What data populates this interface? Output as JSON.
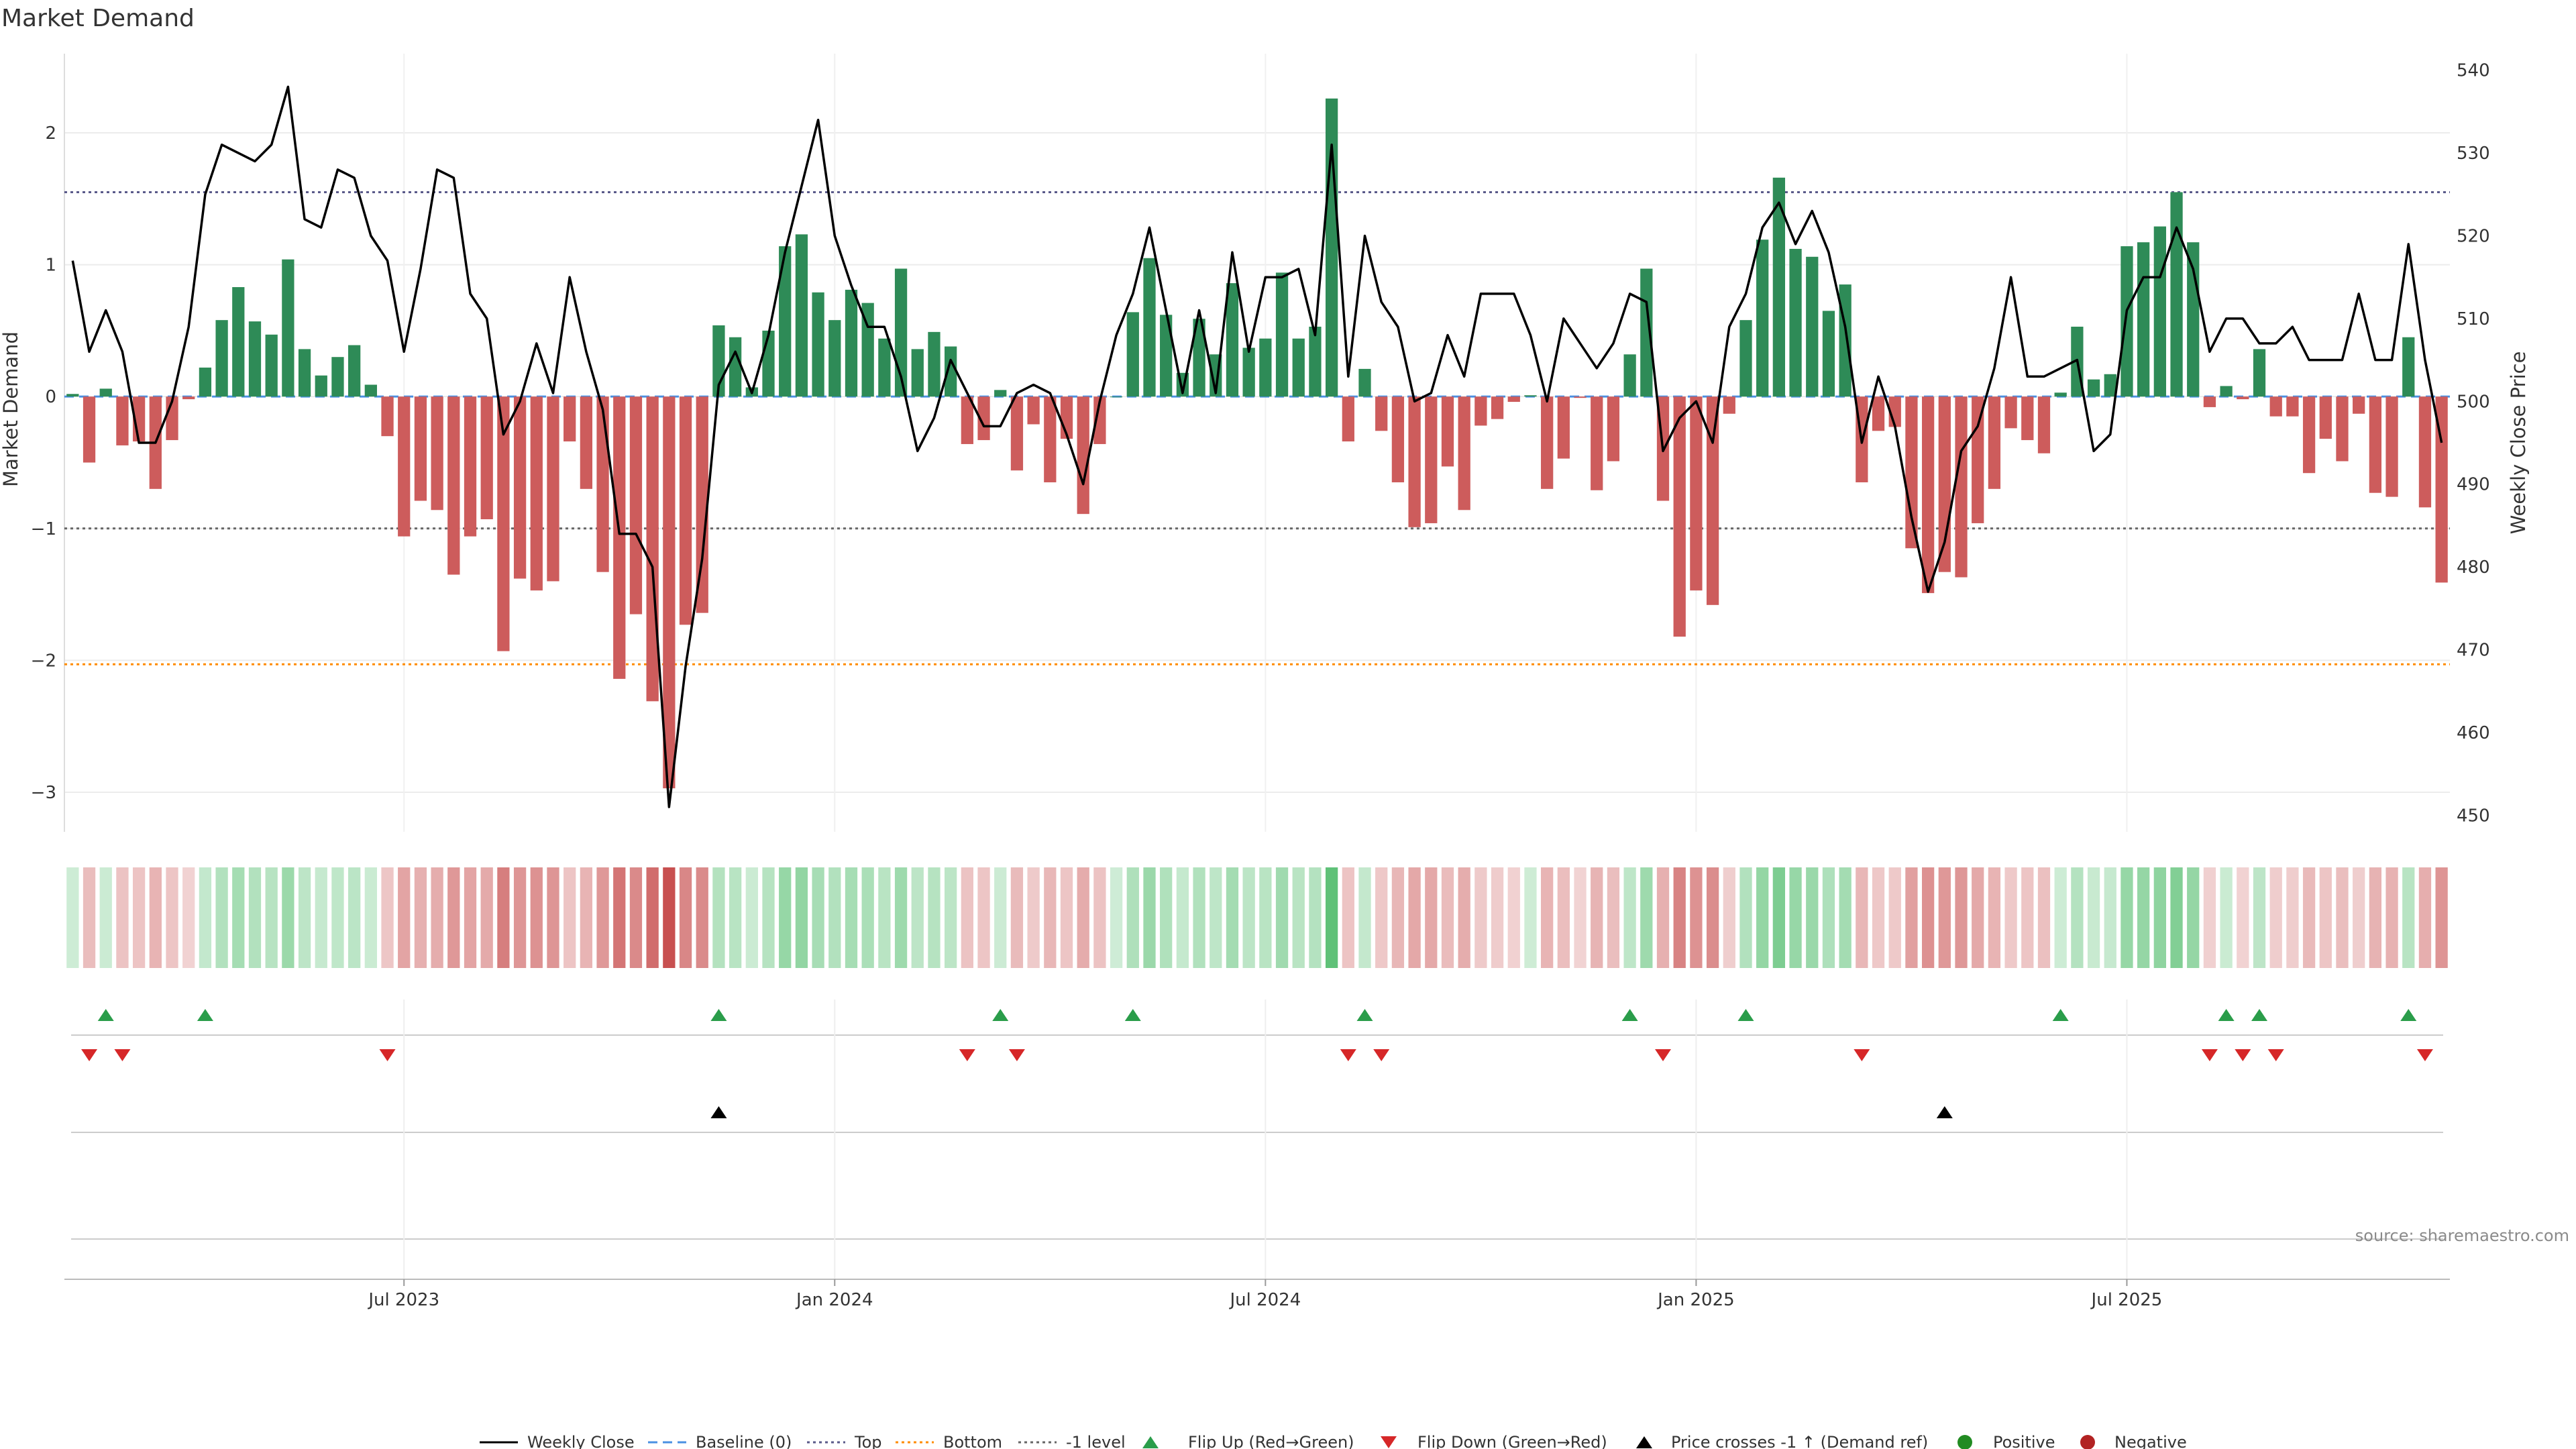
{
  "chart_data": {
    "type": "bar",
    "title": "Market Demand",
    "ylabel_left": "Market Demand",
    "ylabel_right": "Weekly Close Price",
    "ylim_left": [
      -3.3,
      2.6
    ],
    "ylim_right": [
      448,
      542
    ],
    "left_ticks": [
      2,
      1,
      0,
      -1,
      -2,
      -3
    ],
    "left_tick_labels": [
      "2",
      "1",
      "0",
      "−1",
      "−2",
      "−3"
    ],
    "right_ticks": [
      540,
      530,
      520,
      510,
      500,
      490,
      480,
      470,
      460,
      450
    ],
    "right_tick_labels": [
      "540",
      "530",
      "520",
      "510",
      "500",
      "490",
      "480",
      "470",
      "460",
      "450"
    ],
    "reference_lines": {
      "top": 1.55,
      "bottom": -2.03,
      "minus_one": -1.0,
      "baseline": 0
    },
    "x_ticks": [
      {
        "week": 20.5,
        "label": "Jul 2023"
      },
      {
        "week": 46.5,
        "label": "Jan 2024"
      },
      {
        "week": 72.5,
        "label": "Jul 2024"
      },
      {
        "week": 98.5,
        "label": "Jan 2025"
      },
      {
        "week": 124.5,
        "label": "Jul 2025"
      }
    ],
    "series": [
      {
        "name": "Market Demand",
        "values": [
          0.02,
          -0.5,
          0.06,
          -0.37,
          -0.34,
          -0.7,
          -0.33,
          -0.02,
          0.22,
          0.58,
          0.83,
          0.57,
          0.47,
          1.04,
          0.36,
          0.16,
          0.3,
          0.39,
          0.09,
          -0.3,
          -1.06,
          -0.79,
          -0.86,
          -1.35,
          -1.06,
          -0.93,
          -1.93,
          -1.38,
          -1.47,
          -1.4,
          -0.34,
          -0.7,
          -1.33,
          -2.14,
          -1.65,
          -2.31,
          -2.97,
          -1.73,
          -1.64,
          0.54,
          0.45,
          0.07,
          0.5,
          1.14,
          1.23,
          0.79,
          0.58,
          0.81,
          0.71,
          0.44,
          0.97,
          0.36,
          0.49,
          0.38,
          -0.36,
          -0.33,
          0.05,
          -0.56,
          -0.21,
          -0.65,
          -0.32,
          -0.89,
          -0.36,
          0.0,
          0.64,
          1.05,
          0.62,
          0.18,
          0.59,
          0.32,
          0.86,
          0.37,
          0.44,
          0.94,
          0.44,
          0.53,
          2.26,
          -0.34,
          0.21,
          -0.26,
          -0.65,
          -0.99,
          -0.96,
          -0.53,
          -0.86,
          -0.22,
          -0.17,
          -0.04,
          0.01,
          -0.7,
          -0.47,
          -0.01,
          -0.71,
          -0.49,
          0.32,
          0.97,
          -0.79,
          -1.82,
          -1.47,
          -1.58,
          -0.13,
          0.58,
          1.19,
          1.66,
          1.12,
          1.06,
          0.65,
          0.85,
          -0.65,
          -0.26,
          -0.23,
          -1.15,
          -1.49,
          -1.33,
          -1.37,
          -0.96,
          -0.7,
          -0.24,
          -0.33,
          -0.43,
          0.03,
          0.53,
          0.13,
          0.17,
          1.14,
          1.17,
          1.29,
          1.55,
          1.17,
          -0.08,
          0.08,
          -0.02,
          0.36,
          -0.15,
          -0.15,
          -0.58,
          -0.32,
          -0.49,
          -0.13,
          -0.73,
          -0.76,
          0.45,
          -0.84,
          -1.41
        ]
      },
      {
        "name": "Weekly Close",
        "values": [
          517,
          506,
          511,
          506,
          495,
          495,
          500,
          509,
          525,
          531,
          530,
          529,
          531,
          538,
          522,
          521,
          528,
          527,
          520,
          517,
          506,
          516,
          528,
          527,
          513,
          510,
          496,
          500,
          507,
          501,
          515,
          506,
          499,
          484,
          484,
          480,
          451,
          468,
          481,
          502,
          506,
          501,
          508,
          518,
          526,
          534,
          520,
          514,
          509,
          509,
          503,
          494,
          498,
          505,
          501,
          497,
          497,
          501,
          502,
          501,
          496,
          490,
          500,
          508,
          513,
          521,
          511,
          501,
          511,
          501,
          518,
          506,
          515,
          515,
          516,
          508,
          531,
          503,
          520,
          512,
          509,
          500,
          501,
          508,
          503,
          513,
          513,
          513,
          508,
          500,
          510,
          507,
          504,
          507,
          513,
          512,
          494,
          498,
          500,
          495,
          509,
          513,
          521,
          524,
          519,
          523,
          518,
          509,
          495,
          503,
          497,
          486,
          477,
          483,
          494,
          497,
          504,
          515,
          503,
          503,
          504,
          505,
          494,
          496,
          511,
          515,
          515,
          521,
          516,
          506,
          510,
          510,
          507,
          507,
          509,
          505,
          505,
          505,
          513,
          505,
          505,
          519,
          505,
          495
        ]
      }
    ],
    "heat_strip": "Market Demand colour strip",
    "flip_up_weeks": [
      2,
      8,
      39,
      56,
      64,
      78,
      94,
      101,
      120,
      130,
      132,
      141
    ],
    "flip_down_weeks": [
      1,
      3,
      19,
      54,
      57,
      77,
      79,
      96,
      108,
      129,
      131,
      133,
      142
    ],
    "price_cross_weeks": [
      39,
      113
    ],
    "source": "source: sharemaestro.com",
    "legend": [
      "Weekly Close",
      "Baseline (0)",
      "Top",
      "Bottom",
      "-1 level",
      "Flip Up (Red→Green)",
      "Flip Down (Green→Red)",
      "Price crosses -1 ↑ (Demand ref)",
      "Positive",
      "Negative"
    ]
  },
  "colors": {
    "positive": "#2e8b57",
    "negative": "#cd5c5c",
    "price": "#000000",
    "top": "#5a5a8a",
    "bottom": "#ff8c00",
    "minus_one": "#666666",
    "baseline": "#4a90e2",
    "flip_up": "#2a9d4a",
    "flip_down": "#d62728",
    "cross": "#000000",
    "pos_dot": "#228b22",
    "neg_dot": "#b22222"
  }
}
